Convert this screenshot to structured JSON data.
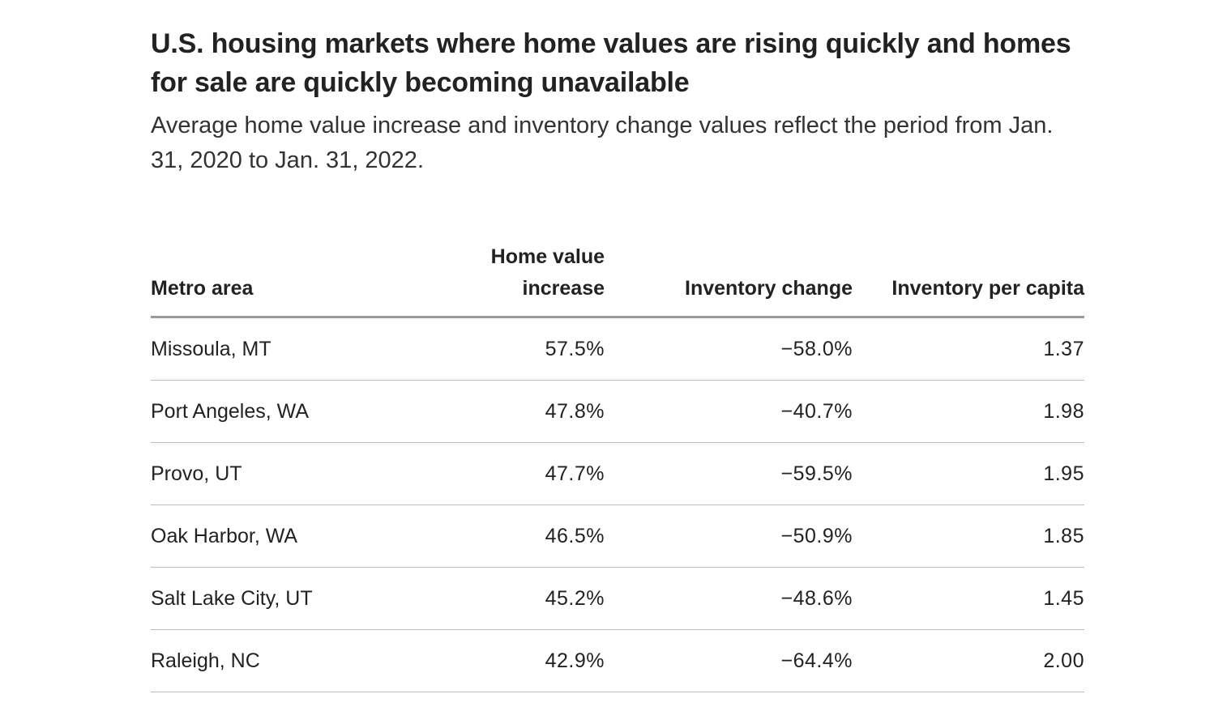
{
  "title": "U.S. housing markets where home values are rising quickly and homes for sale are quickly becoming unavailable",
  "subtitle": "Average home value increase and inventory change values reflect the period from Jan. 31, 2020 to Jan. 31, 2022.",
  "table": {
    "headers": [
      "Metro area",
      "Home value increase",
      "Inventory change",
      "Inventory per capita"
    ],
    "rows": [
      [
        "Missoula, MT",
        "57.5%",
        "−58.0%",
        "1.37"
      ],
      [
        "Port Angeles, WA",
        "47.8%",
        "−40.7%",
        "1.98"
      ],
      [
        "Provo, UT",
        "47.7%",
        "−59.5%",
        "1.95"
      ],
      [
        "Oak Harbor, WA",
        "46.5%",
        "−50.9%",
        "1.85"
      ],
      [
        "Salt Lake City, UT",
        "45.2%",
        "−48.6%",
        "1.45"
      ],
      [
        "Raleigh, NC",
        "42.9%",
        "−64.4%",
        "2.00"
      ]
    ]
  },
  "chart_data": {
    "type": "table",
    "title": "U.S. housing markets where home values are rising quickly and homes for sale are quickly becoming unavailable",
    "subtitle": "Average home value increase and inventory change values reflect the period from Jan. 31, 2020 to Jan. 31, 2022.",
    "columns": [
      "Metro area",
      "Home value increase",
      "Inventory change",
      "Inventory per capita"
    ],
    "categories": [
      "Missoula, MT",
      "Port Angeles, WA",
      "Provo, UT",
      "Oak Harbor, WA",
      "Salt Lake City, UT",
      "Raleigh, NC"
    ],
    "series": [
      {
        "name": "Home value increase",
        "values": [
          57.5,
          47.8,
          47.7,
          46.5,
          45.2,
          42.9
        ]
      },
      {
        "name": "Inventory change",
        "values": [
          -58.0,
          -40.7,
          -59.5,
          -50.9,
          -48.6,
          -64.4
        ]
      },
      {
        "name": "Inventory per capita",
        "values": [
          1.37,
          1.98,
          1.95,
          1.85,
          1.45,
          2.0
        ]
      }
    ]
  }
}
